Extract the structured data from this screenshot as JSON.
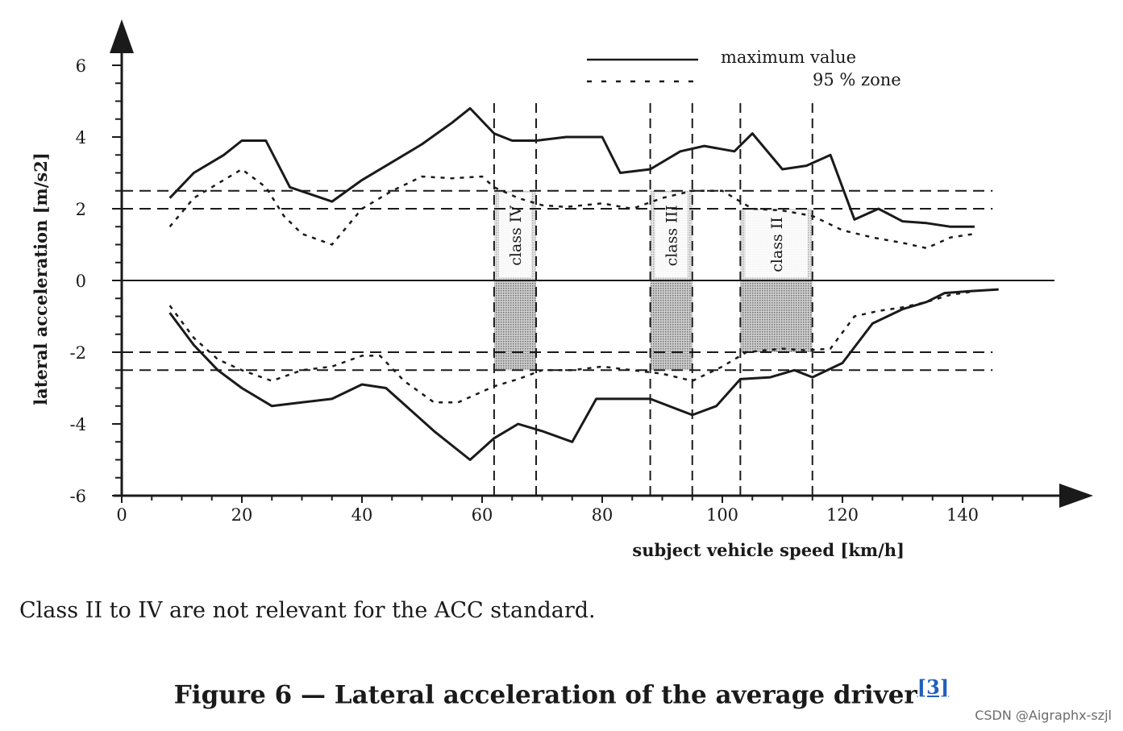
{
  "chart_data": {
    "type": "line",
    "title": "",
    "xlabel": "subject vehicle speed [km/h]",
    "ylabel": "lateral acceleration [m/s2]",
    "xlim": [
      0,
      156
    ],
    "ylim": [
      -6,
      7
    ],
    "x_ticks": [
      "0",
      "20",
      "40",
      "60",
      "80",
      "100",
      "120",
      "140"
    ],
    "y_ticks": [
      "-6",
      "-4",
      "-2",
      "0",
      "2",
      "4",
      "6"
    ],
    "legend": {
      "position": "top-right",
      "entries": [
        "maximum value",
        "95 % zone"
      ]
    },
    "series": [
      {
        "name": "maximum value",
        "style": "solid",
        "x": [
          8,
          12,
          17,
          20,
          24,
          28,
          35,
          40,
          45,
          50,
          55,
          58,
          62,
          65,
          69,
          74,
          80,
          83,
          88,
          93,
          97,
          102,
          105,
          110,
          114,
          118,
          122,
          126,
          130,
          134,
          138,
          142
        ],
        "y": [
          2.3,
          3.0,
          3.5,
          3.9,
          3.9,
          2.6,
          2.2,
          2.8,
          3.3,
          3.8,
          4.4,
          4.8,
          4.1,
          3.9,
          3.9,
          4.0,
          4.0,
          3.0,
          3.1,
          3.6,
          3.75,
          3.6,
          4.1,
          3.1,
          3.2,
          3.5,
          1.7,
          2.0,
          1.65,
          1.6,
          1.5,
          1.5
        ]
      },
      {
        "name": "95 % zone",
        "style": "dotted",
        "x": [
          8,
          12,
          16,
          20,
          24,
          27,
          30,
          35,
          40,
          45,
          50,
          55,
          60,
          62,
          66,
          70,
          74,
          80,
          85,
          90,
          95,
          100,
          105,
          110,
          115,
          120,
          125,
          130,
          134,
          138,
          142
        ],
        "y": [
          1.5,
          2.3,
          2.7,
          3.1,
          2.6,
          1.8,
          1.3,
          1.0,
          2.0,
          2.5,
          2.9,
          2.85,
          2.9,
          2.6,
          2.3,
          2.1,
          2.05,
          2.15,
          2.0,
          2.3,
          2.5,
          2.5,
          2.0,
          1.95,
          1.8,
          1.4,
          1.2,
          1.05,
          0.9,
          1.2,
          1.3
        ]
      },
      {
        "name": "maximum value",
        "style": "solid",
        "x": [
          8,
          12,
          16,
          20,
          25,
          30,
          35,
          40,
          44,
          48,
          52,
          58,
          62,
          66,
          70,
          75,
          79,
          83,
          88,
          95,
          99,
          103,
          108,
          112,
          115,
          120,
          125,
          130,
          134,
          137,
          141,
          146
        ],
        "y": [
          -0.9,
          -1.8,
          -2.5,
          -3.0,
          -3.5,
          -3.4,
          -3.3,
          -2.9,
          -3.0,
          -3.6,
          -4.2,
          -5.0,
          -4.4,
          -4.0,
          -4.2,
          -4.5,
          -3.3,
          -3.3,
          -3.3,
          -3.75,
          -3.5,
          -2.75,
          -2.7,
          -2.5,
          -2.7,
          -2.3,
          -1.2,
          -0.8,
          -0.6,
          -0.35,
          -0.3,
          -0.25
        ]
      },
      {
        "name": "95 % zone",
        "style": "dotted",
        "x": [
          8,
          12,
          16,
          20,
          25,
          30,
          35,
          40,
          43,
          47,
          52,
          56,
          62,
          66,
          70,
          75,
          80,
          85,
          90,
          95,
          100,
          104,
          110,
          114,
          118,
          122,
          126,
          130,
          134,
          138,
          142
        ],
        "y": [
          -0.7,
          -1.6,
          -2.2,
          -2.5,
          -2.8,
          -2.5,
          -2.4,
          -2.1,
          -2.1,
          -2.8,
          -3.4,
          -3.4,
          -2.95,
          -2.75,
          -2.5,
          -2.5,
          -2.4,
          -2.5,
          -2.6,
          -2.8,
          -2.4,
          -2.0,
          -1.9,
          -1.95,
          -1.9,
          -1.0,
          -0.85,
          -0.75,
          -0.6,
          -0.4,
          -0.3
        ]
      }
    ],
    "reference_lines_y": [
      2.0,
      2.5,
      -2.0,
      -2.5
    ],
    "zero_line": true,
    "vertical_lines_x": [
      62,
      69,
      88,
      95,
      103,
      115
    ],
    "classes": [
      {
        "label": "class IV",
        "x": [
          62,
          69
        ],
        "y_upper": 2.5,
        "y_lower": -2.5
      },
      {
        "label": "class III",
        "x": [
          88,
          95
        ],
        "y_upper": 2.5,
        "y_lower": -2.5
      },
      {
        "label": "class II",
        "x": [
          103,
          115
        ],
        "y_upper": 2.0,
        "y_lower": -2.0
      }
    ]
  },
  "note": "Class II to IV are not relevant for the ACC standard.",
  "caption": {
    "text": "Figure 6 — Lateral acceleration of the average driver",
    "ref": "[3]"
  },
  "watermark": "CSDN @Aigraphx-szjl",
  "colors": {
    "line": "#1a1a1a",
    "hatch": "#9a9a9a",
    "link": "#1f5fbf"
  }
}
